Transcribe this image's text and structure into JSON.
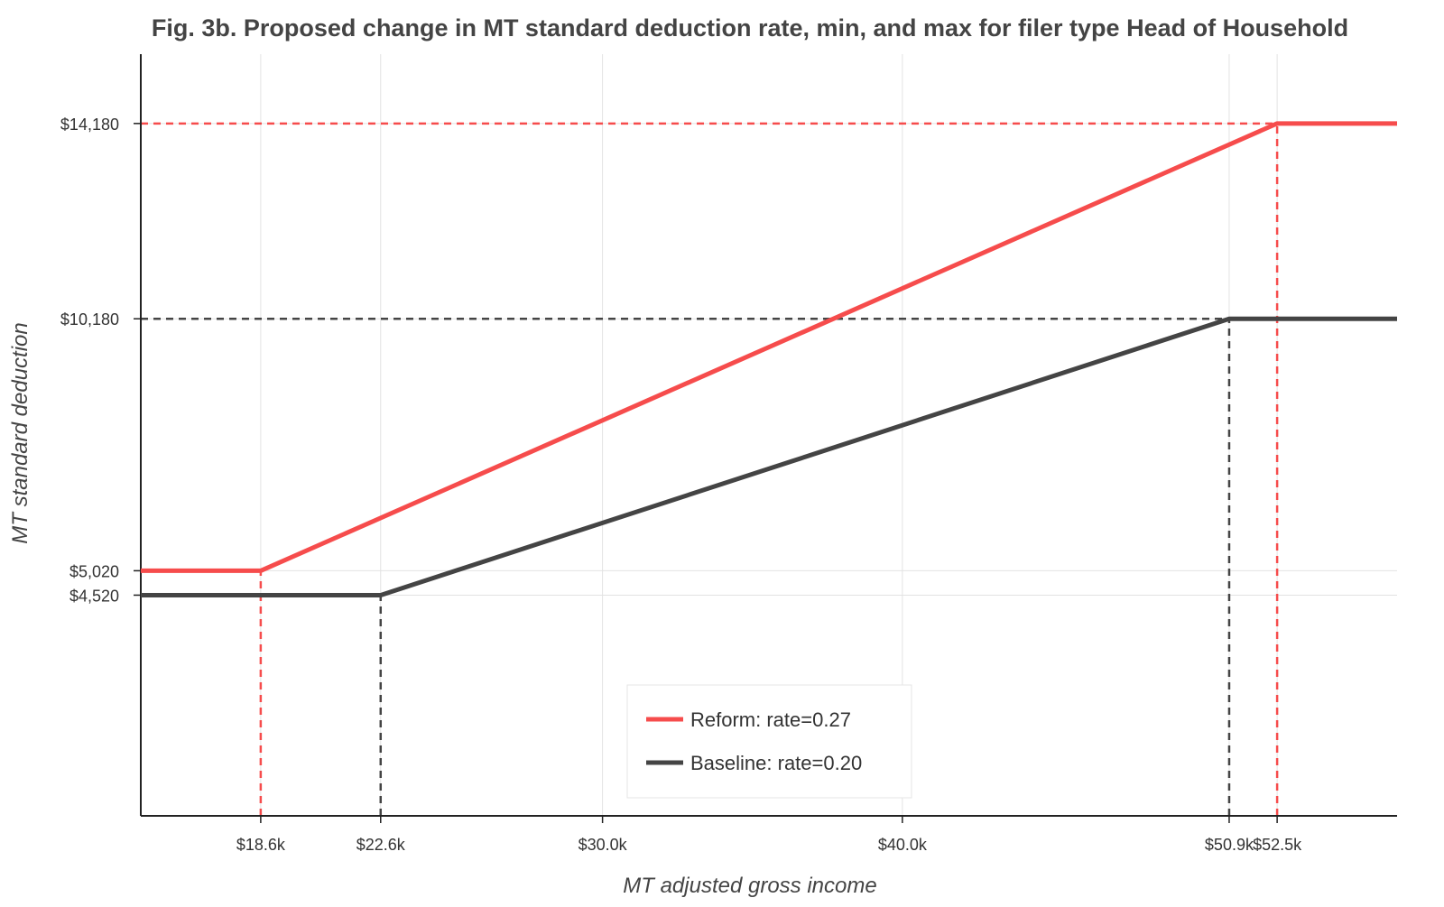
{
  "chart_data": {
    "type": "line",
    "title": "Fig. 3b. Proposed change in MT standard deduction rate, min, and max for filer type Head of Household",
    "xlabel": "MT adjusted gross income",
    "ylabel": "MT standard deduction",
    "xlim": [
      14600,
      56500
    ],
    "ylim": [
      0,
      15600
    ],
    "x_ticks": [
      {
        "value": 18600,
        "label": "$18.6k"
      },
      {
        "value": 22600,
        "label": "$22.6k"
      },
      {
        "value": 30000,
        "label": "$30.0k"
      },
      {
        "value": 40000,
        "label": "$40.0k"
      },
      {
        "value": 50900,
        "label": "$50.9k"
      },
      {
        "value": 52500,
        "label": "$52.5k"
      }
    ],
    "y_ticks": [
      {
        "value": 4520,
        "label": "$4,520"
      },
      {
        "value": 5020,
        "label": "$5,020"
      },
      {
        "value": 10180,
        "label": "$10,180"
      },
      {
        "value": 14180,
        "label": "$14,180"
      }
    ],
    "grid": true,
    "legend_position": "bottom-center",
    "series": [
      {
        "name": "Reform: rate=0.27",
        "color": "#f64c4c",
        "x": [
          14600,
          18600,
          52500,
          56500
        ],
        "y": [
          5020,
          5020,
          14180,
          14180
        ],
        "reference_x": [
          18600,
          52500
        ],
        "reference_y": 14180
      },
      {
        "name": "Baseline: rate=0.20",
        "color": "#444444",
        "x": [
          14600,
          22600,
          50900,
          56500
        ],
        "y": [
          4520,
          4520,
          10180,
          10180
        ],
        "reference_x": [
          22600,
          50900
        ],
        "reference_y": 10180
      }
    ],
    "gridline_color": "#e2e2e2",
    "axis_color": "#222222"
  }
}
